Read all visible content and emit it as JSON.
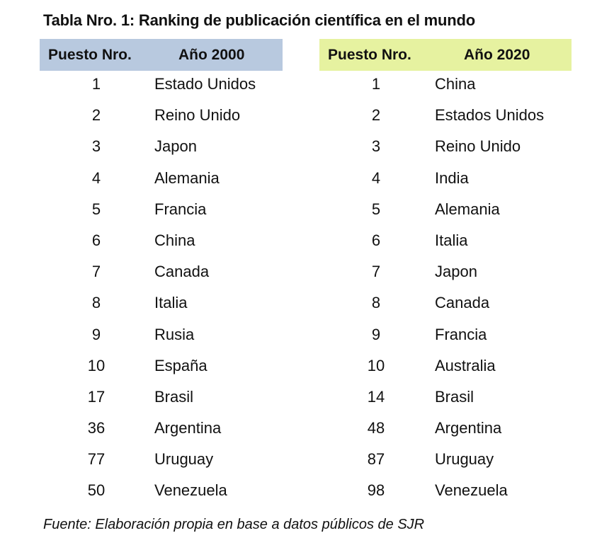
{
  "title": "Tabla Nro. 1: Ranking de publicación científica en el mundo",
  "colors": {
    "header_2000": "#b8c9df",
    "header_2020": "#e6f2a0"
  },
  "tables": [
    {
      "headers": {
        "rank": "Puesto Nro.",
        "year": "Año 2000"
      },
      "rows": [
        {
          "rank": "1",
          "country": "Estado Unidos"
        },
        {
          "rank": "2",
          "country": "Reino Unido"
        },
        {
          "rank": "3",
          "country": "Japon"
        },
        {
          "rank": "4",
          "country": "Alemania"
        },
        {
          "rank": "5",
          "country": "Francia"
        },
        {
          "rank": "6",
          "country": "China"
        },
        {
          "rank": "7",
          "country": "Canada"
        },
        {
          "rank": "8",
          "country": "Italia"
        },
        {
          "rank": "9",
          "country": "Rusia"
        },
        {
          "rank": "10",
          "country": "España"
        },
        {
          "rank": "17",
          "country": "Brasil"
        },
        {
          "rank": "36",
          "country": "Argentina"
        },
        {
          "rank": "77",
          "country": "Uruguay"
        },
        {
          "rank": "50",
          "country": "Venezuela"
        }
      ]
    },
    {
      "headers": {
        "rank": "Puesto Nro.",
        "year": "Año 2020"
      },
      "rows": [
        {
          "rank": "1",
          "country": "China"
        },
        {
          "rank": "2",
          "country": "Estados Unidos"
        },
        {
          "rank": "3",
          "country": "Reino Unido"
        },
        {
          "rank": "4",
          "country": "India"
        },
        {
          "rank": "5",
          "country": "Alemania"
        },
        {
          "rank": "6",
          "country": "Italia"
        },
        {
          "rank": "7",
          "country": "Japon"
        },
        {
          "rank": "8",
          "country": "Canada"
        },
        {
          "rank": "9",
          "country": "Francia"
        },
        {
          "rank": "10",
          "country": "Australia"
        },
        {
          "rank": "14",
          "country": "Brasil"
        },
        {
          "rank": "48",
          "country": "Argentina"
        },
        {
          "rank": "87",
          "country": "Uruguay"
        },
        {
          "rank": "98",
          "country": "Venezuela"
        }
      ]
    }
  ],
  "source": "Fuente: Elaboración propia en base a datos públicos de SJR"
}
